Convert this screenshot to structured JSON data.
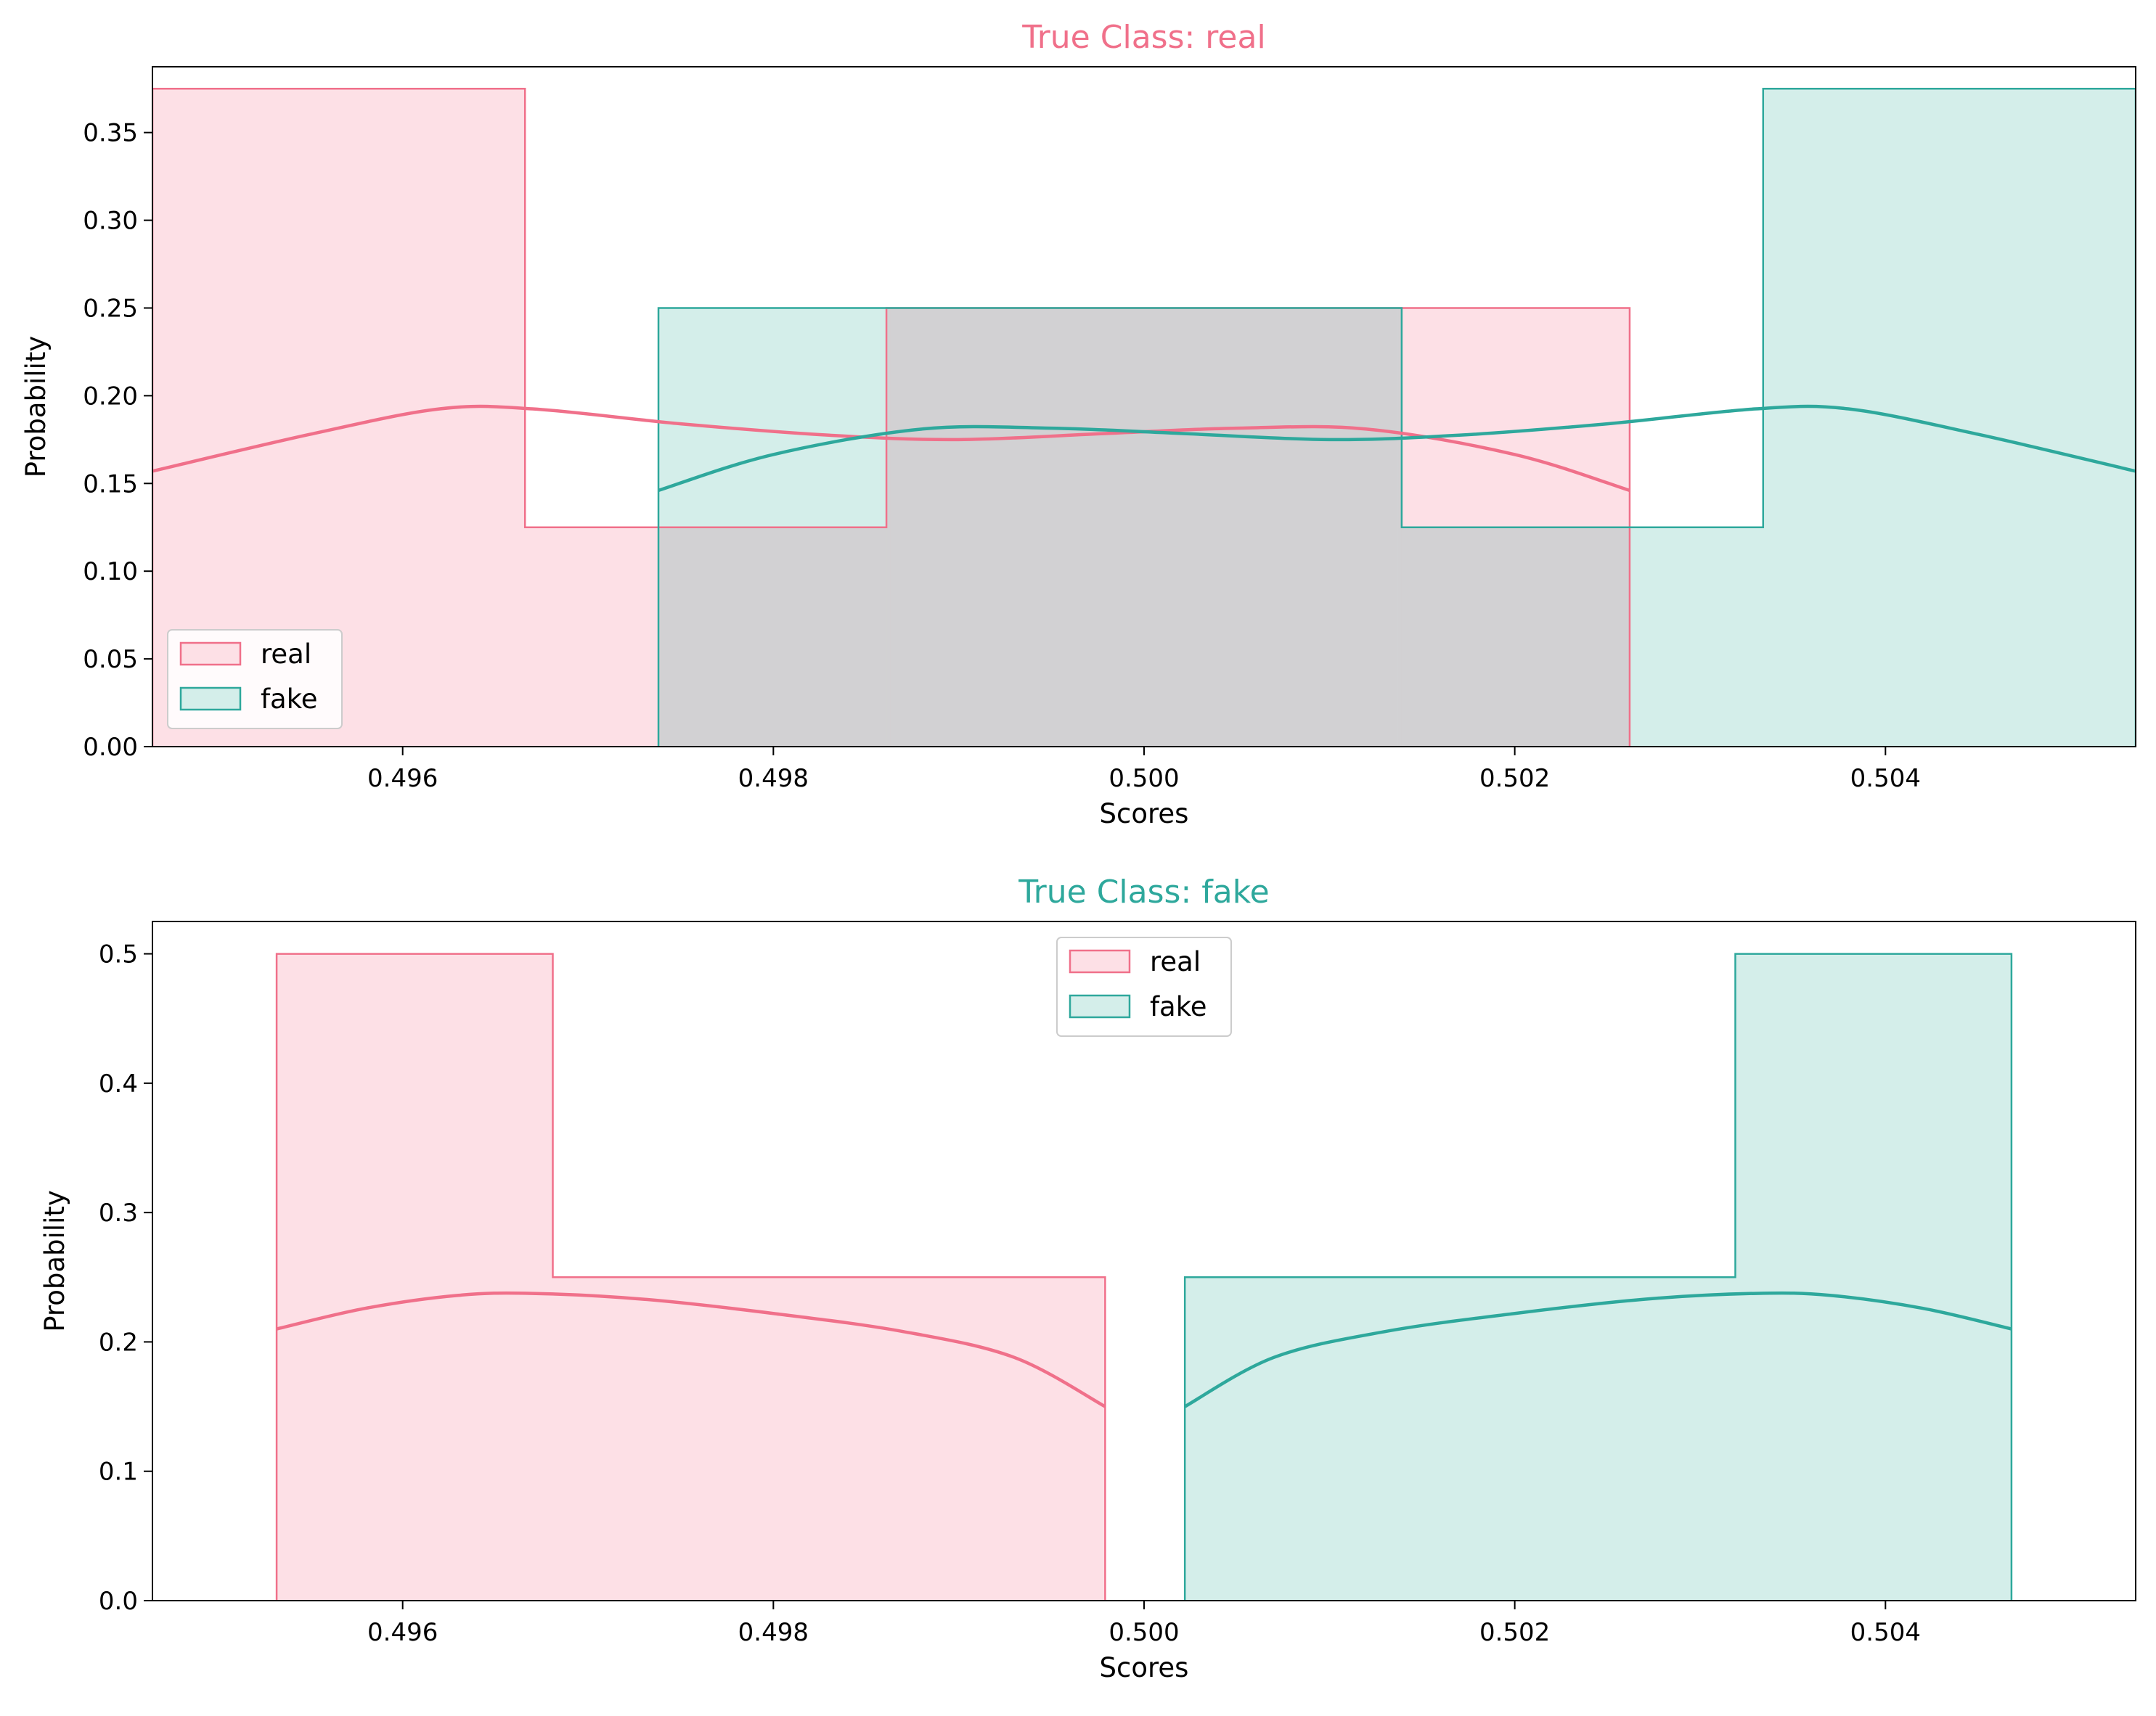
{
  "chart_data": [
    {
      "type": "histogram",
      "title": "True Class: real",
      "title_color": "#f0708a",
      "xlabel": "Scores",
      "ylabel": "Probability",
      "xlim": [
        0.49465,
        0.50535
      ],
      "ylim": [
        0,
        0.3875
      ],
      "xticks": [
        {
          "value": 0.496,
          "label": "0.496"
        },
        {
          "value": 0.498,
          "label": "0.498"
        },
        {
          "value": 0.5,
          "label": "0.500"
        },
        {
          "value": 0.502,
          "label": "0.502"
        },
        {
          "value": 0.504,
          "label": "0.504"
        }
      ],
      "yticks": [
        {
          "value": 0.0,
          "label": "0.00"
        },
        {
          "value": 0.05,
          "label": "0.05"
        },
        {
          "value": 0.1,
          "label": "0.10"
        },
        {
          "value": 0.15,
          "label": "0.15"
        },
        {
          "value": 0.2,
          "label": "0.20"
        },
        {
          "value": 0.25,
          "label": "0.25"
        },
        {
          "value": 0.3,
          "label": "0.30"
        },
        {
          "value": 0.35,
          "label": "0.35"
        }
      ],
      "legend": "lower-left",
      "series": [
        {
          "name": "real",
          "color": "#f0708a",
          "fill": "#fde0e6",
          "edges": [
            0.49465,
            0.49666,
            0.49861,
            0.50137,
            0.50262
          ],
          "probabilities": [
            0.375,
            0.125,
            0.25,
            0.25
          ],
          "kde": [
            [
              0.49465,
              0.157
            ],
            [
              0.4955,
              0.178
            ],
            [
              0.4962,
              0.1925
            ],
            [
              0.4967,
              0.1925
            ],
            [
              0.4975,
              0.184
            ],
            [
              0.4983,
              0.1775
            ],
            [
              0.499,
              0.175
            ],
            [
              0.4998,
              0.1785
            ],
            [
              0.5005,
              0.1815
            ],
            [
              0.5012,
              0.181
            ],
            [
              0.502,
              0.1665
            ],
            [
              0.50262,
              0.146
            ]
          ]
        },
        {
          "name": "fake",
          "color": "#2ea89c",
          "fill": "#d4eeea",
          "edges": [
            0.49738,
            0.49863,
            0.50139,
            0.50334,
            0.50535
          ],
          "probabilities": [
            0.25,
            0.25,
            0.125,
            0.375
          ],
          "kde": [
            [
              0.49738,
              0.146
            ],
            [
              0.498,
              0.1665
            ],
            [
              0.4988,
              0.181
            ],
            [
              0.4995,
              0.1815
            ],
            [
              0.5002,
              0.1785
            ],
            [
              0.501,
              0.175
            ],
            [
              0.5017,
              0.1775
            ],
            [
              0.5025,
              0.184
            ],
            [
              0.5033,
              0.1925
            ],
            [
              0.5038,
              0.1925
            ],
            [
              0.5045,
              0.178
            ],
            [
              0.50535,
              0.157
            ]
          ]
        }
      ]
    },
    {
      "type": "histogram",
      "title": "True Class: fake",
      "title_color": "#2ea89c",
      "xlabel": "Scores",
      "ylabel": "Probability",
      "xlim": [
        0.49465,
        0.50535
      ],
      "ylim": [
        0,
        0.525
      ],
      "xticks": [
        {
          "value": 0.496,
          "label": "0.496"
        },
        {
          "value": 0.498,
          "label": "0.498"
        },
        {
          "value": 0.5,
          "label": "0.500"
        },
        {
          "value": 0.502,
          "label": "0.502"
        },
        {
          "value": 0.504,
          "label": "0.504"
        }
      ],
      "yticks": [
        {
          "value": 0.0,
          "label": "0.0"
        },
        {
          "value": 0.1,
          "label": "0.1"
        },
        {
          "value": 0.2,
          "label": "0.2"
        },
        {
          "value": 0.3,
          "label": "0.3"
        },
        {
          "value": 0.4,
          "label": "0.4"
        },
        {
          "value": 0.5,
          "label": "0.5"
        }
      ],
      "legend": "upper-center",
      "series": [
        {
          "name": "real",
          "color": "#f0708a",
          "fill": "#fde0e6",
          "edges": [
            0.49532,
            0.49681,
            0.49979
          ],
          "probabilities": [
            0.5,
            0.25
          ],
          "kde": [
            [
              0.49532,
              0.21
            ],
            [
              0.4958,
              0.226
            ],
            [
              0.4963,
              0.236
            ],
            [
              0.4967,
              0.2375
            ],
            [
              0.4973,
              0.233
            ],
            [
              0.498,
              0.222
            ],
            [
              0.4987,
              0.208
            ],
            [
              0.4993,
              0.188
            ],
            [
              0.49979,
              0.15
            ]
          ]
        },
        {
          "name": "fake",
          "color": "#2ea89c",
          "fill": "#d4eeea",
          "edges": [
            0.50022,
            0.50319,
            0.50468
          ],
          "probabilities": [
            0.25,
            0.5
          ],
          "kde": [
            [
              0.50022,
              0.15
            ],
            [
              0.5007,
              0.188
            ],
            [
              0.5013,
              0.208
            ],
            [
              0.502,
              0.222
            ],
            [
              0.5027,
              0.233
            ],
            [
              0.5033,
              0.2375
            ],
            [
              0.5037,
              0.236
            ],
            [
              0.5042,
              0.226
            ],
            [
              0.50468,
              0.21
            ]
          ]
        }
      ]
    }
  ]
}
